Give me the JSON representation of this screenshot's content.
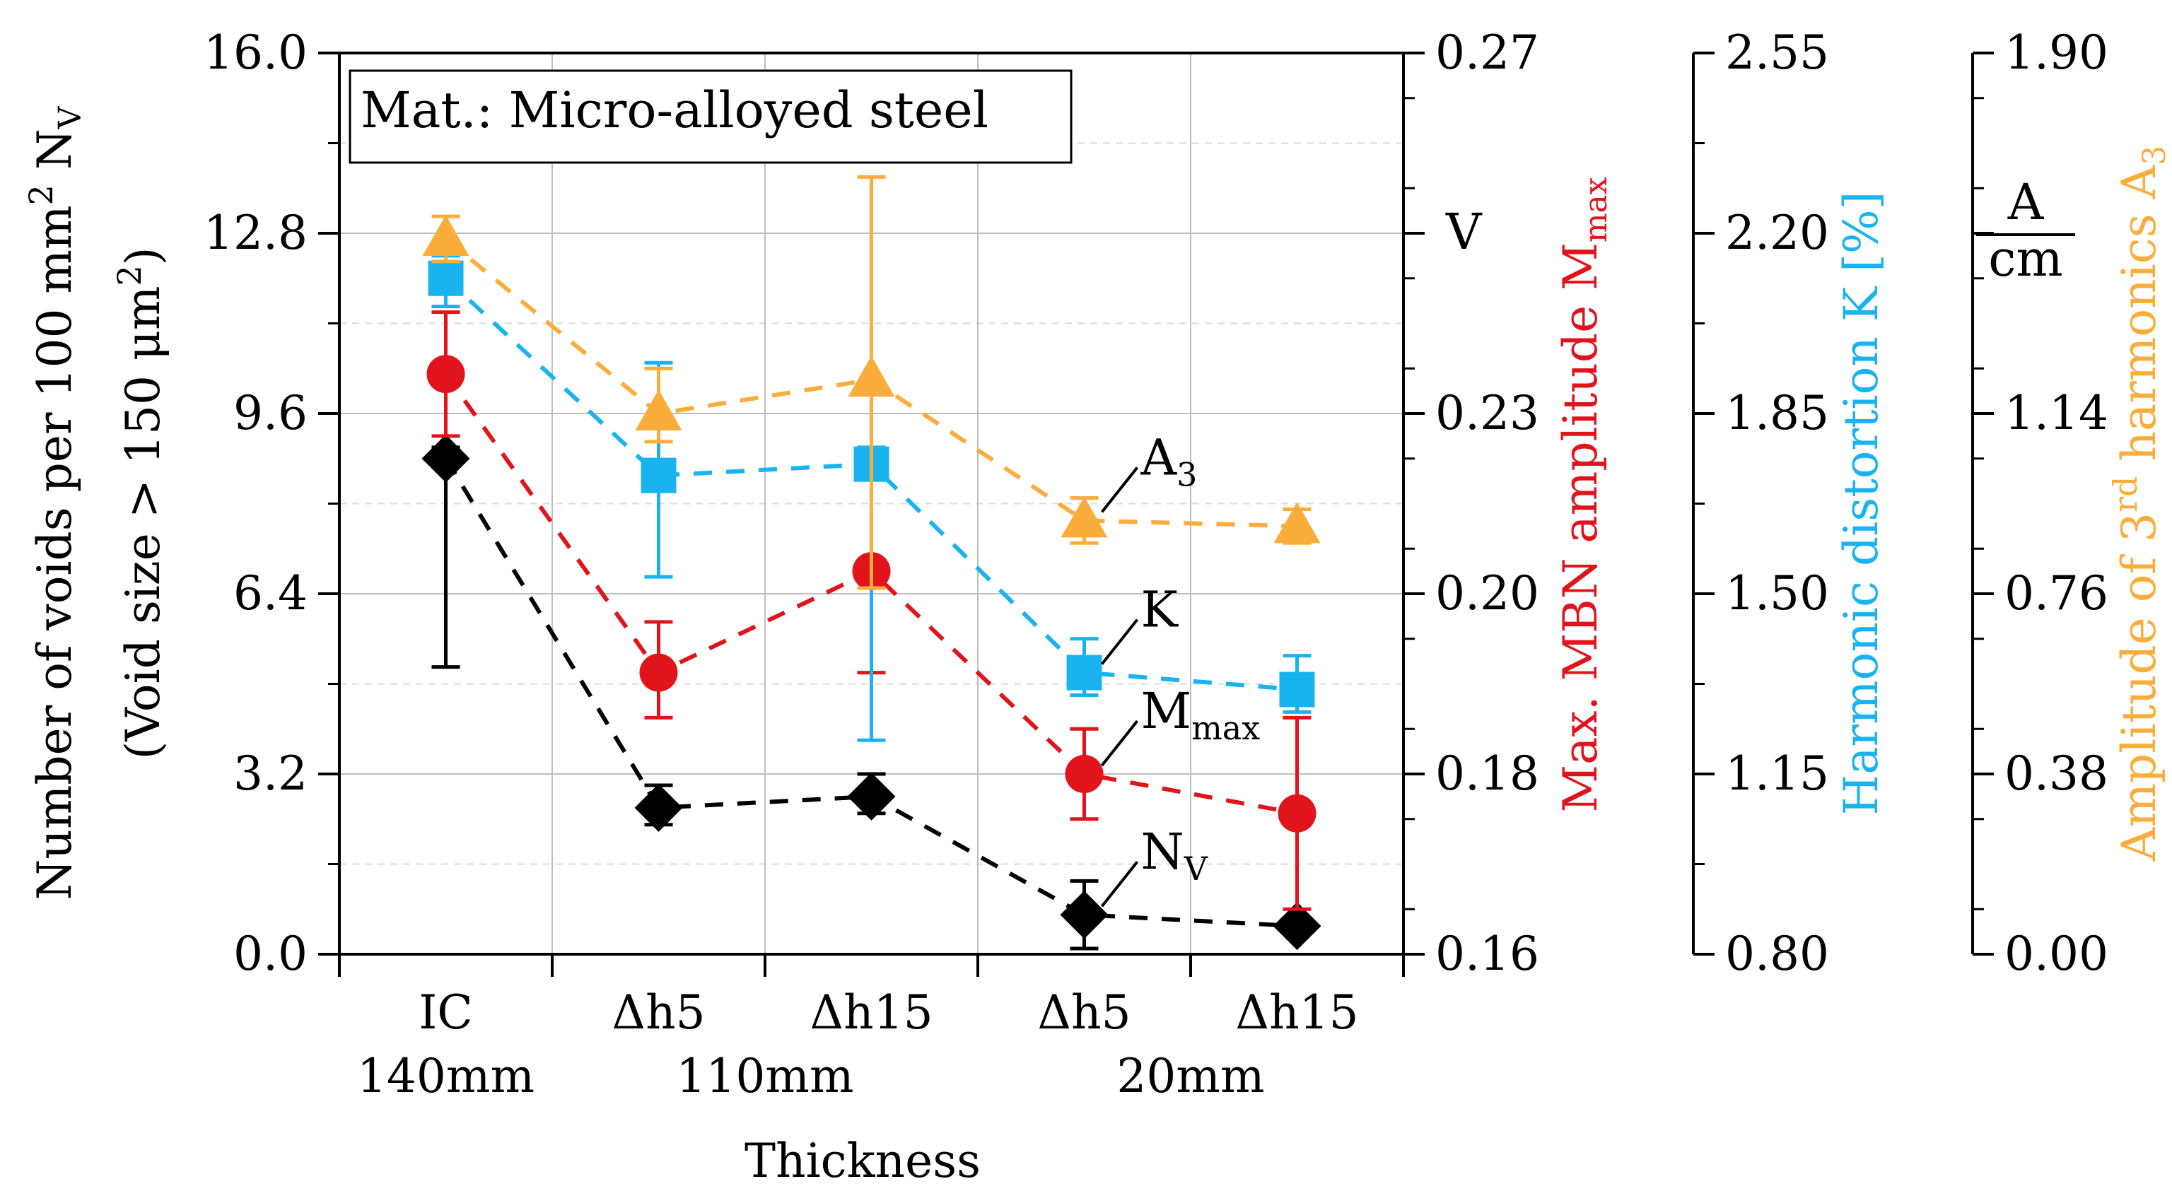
{
  "chart_data": {
    "type": "line",
    "legend_box": "Mat.: Micro-alloyed steel",
    "categories": [
      "IC",
      "Δh5",
      "Δh15",
      "Δh5",
      "Δh15"
    ],
    "category_groups": [
      {
        "label": "140mm",
        "categories": [
          0
        ]
      },
      {
        "label": "110mm",
        "categories": [
          1,
          2
        ]
      },
      {
        "label": "20mm",
        "categories": [
          3,
          4
        ]
      }
    ],
    "xlabel": "Thickness",
    "axes": {
      "left": {
        "label_line1": "Number of voids per 100  mm",
        "label_sup": "2",
        "label_tail": " N",
        "label_sub": "V",
        "label_line2_a": "(Void size > 150 μm",
        "label_line2_sup": "2",
        "label_line2_b": ")",
        "ticks": [
          "0.0",
          "3.2",
          "6.4",
          "9.6",
          "12.8",
          "16.0"
        ],
        "range": [
          0,
          16
        ]
      },
      "right1": {
        "label": "Max. MBN amplitude M",
        "label_sub": "max",
        "unit": "V",
        "ticks": [
          "0.16",
          "0.18",
          "0.20",
          "0.23",
          "0.27"
        ],
        "color": "#e1141c"
      },
      "right2": {
        "label": "Harmonic distortion K [%]",
        "ticks": [
          "0.80",
          "1.15",
          "1.50",
          "1.85",
          "2.20",
          "2.55"
        ],
        "color": "#19b4ef"
      },
      "right3": {
        "label": "Amplitude of 3",
        "label_sup": "rd",
        "label_tail": " harmonics A",
        "label_sub": "3",
        "unit_num": "A",
        "unit_den": "cm",
        "ticks": [
          "0.00",
          "0.38",
          "0.76",
          "1.14",
          "1.90"
        ],
        "color": "#fbad3b"
      }
    },
    "series": [
      {
        "name": "A3",
        "label": "A",
        "label_sub": "3",
        "color": "#fbad3b",
        "marker": "triangle",
        "values": [
          12.7,
          9.6,
          10.2,
          7.7,
          7.6
        ],
        "err_low": [
          12.3,
          9.1,
          6.5,
          7.3,
          7.3
        ],
        "err_high": [
          13.1,
          10.4,
          13.8,
          8.1,
          7.9
        ]
      },
      {
        "name": "K",
        "label": "K",
        "label_sub": "",
        "color": "#19b4ef",
        "marker": "square",
        "values": [
          12.0,
          8.5,
          8.7,
          5.0,
          4.7
        ],
        "err_low": [
          11.5,
          6.7,
          3.8,
          4.6,
          4.3
        ],
        "err_high": [
          12.4,
          10.5,
          9.0,
          5.6,
          5.3
        ]
      },
      {
        "name": "Mmax",
        "label": "M",
        "label_sub": "max",
        "color": "#e1141c",
        "marker": "circle",
        "values": [
          10.3,
          5.0,
          6.8,
          3.2,
          2.5
        ],
        "err_low": [
          9.2,
          4.2,
          5.0,
          2.4,
          0.8
        ],
        "err_high": [
          11.4,
          5.9,
          6.9,
          4.0,
          4.2
        ]
      },
      {
        "name": "NV",
        "label": "N",
        "label_sub": "V",
        "color": "#000000",
        "marker": "diamond",
        "values": [
          8.8,
          2.6,
          2.8,
          0.7,
          0.5
        ],
        "err_low": [
          5.1,
          2.3,
          2.5,
          0.1,
          0.4
        ],
        "err_high": [
          9.0,
          3.0,
          3.2,
          1.3,
          0.6
        ]
      }
    ]
  }
}
